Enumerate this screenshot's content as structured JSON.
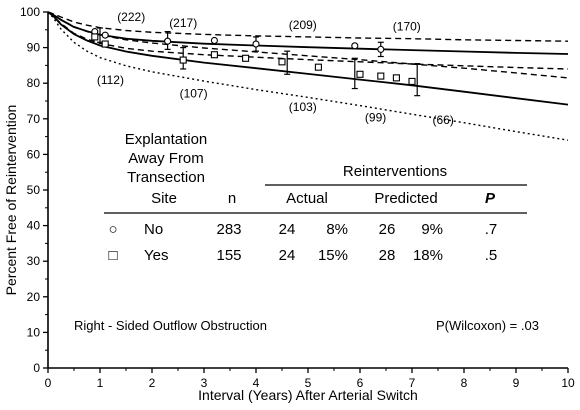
{
  "chart_data": {
    "type": "line",
    "title": "",
    "xlabel": "Interval (Years) After Arterial Switch",
    "ylabel": "Percent Free of Reintervention",
    "xlim": [
      0,
      10
    ],
    "ylim": [
      0,
      100
    ],
    "x_ticks": [
      0,
      1,
      2,
      3,
      4,
      5,
      6,
      7,
      8,
      9,
      10
    ],
    "y_ticks": [
      0,
      10,
      20,
      30,
      40,
      50,
      60,
      70,
      80,
      90,
      100
    ],
    "grid": false,
    "series": [
      {
        "key": "no_parametric",
        "style": "solid",
        "x": [
          0,
          0.1,
          0.25,
          0.5,
          0.75,
          1,
          1.5,
          2,
          3,
          4,
          5,
          6,
          7,
          8,
          9,
          10
        ],
        "y": [
          100,
          99.2,
          97.8,
          95.8,
          94.6,
          93.6,
          92.5,
          91.9,
          91.1,
          90.6,
          90.1,
          89.7,
          89.3,
          88.9,
          88.5,
          88.2
        ]
      },
      {
        "key": "no_ci_upper",
        "style": "dashed",
        "x": [
          0,
          0.1,
          0.25,
          0.5,
          0.75,
          1,
          1.5,
          2,
          3,
          4,
          5,
          6,
          7,
          8,
          9,
          10
        ],
        "y": [
          100,
          99.5,
          98.6,
          97.2,
          96.3,
          95.6,
          94.8,
          94.3,
          93.7,
          93.3,
          93,
          92.7,
          92.5,
          92.2,
          92,
          91.8
        ]
      },
      {
        "key": "no_ci_lower",
        "style": "dashed",
        "x": [
          0,
          0.1,
          0.25,
          0.5,
          0.75,
          1,
          1.5,
          2,
          3,
          4,
          5,
          6,
          7,
          8,
          9,
          10
        ],
        "y": [
          100,
          98.8,
          96.8,
          94,
          92.4,
          91.2,
          89.8,
          89,
          88,
          87.3,
          86.6,
          86,
          85.4,
          84.9,
          84.4,
          84
        ]
      },
      {
        "key": "yes_parametric",
        "style": "solid",
        "x": [
          0,
          0.1,
          0.25,
          0.5,
          0.75,
          1,
          1.5,
          2,
          3,
          4,
          5,
          6,
          7,
          8,
          9,
          10
        ],
        "y": [
          100,
          98.9,
          96.5,
          93.8,
          92,
          90.6,
          88.9,
          87.7,
          85.8,
          84.2,
          82.6,
          81,
          79.4,
          77.6,
          75.8,
          74
        ]
      },
      {
        "key": "yes_ci_upper",
        "style": "dashed",
        "x": [
          0,
          0.1,
          0.25,
          0.5,
          0.75,
          1,
          1.5,
          2,
          3,
          4,
          5,
          6,
          7,
          8,
          9,
          10
        ],
        "y": [
          100,
          99.3,
          97.8,
          95.9,
          94.5,
          93.5,
          92.2,
          91.3,
          89.9,
          88.8,
          87.7,
          86.6,
          85.4,
          84.2,
          82.9,
          81.5
        ]
      },
      {
        "key": "yes_ci_lower",
        "style": "dotted",
        "x": [
          0,
          0.1,
          0.25,
          0.5,
          0.75,
          1,
          1.5,
          2,
          3,
          4,
          5,
          6,
          7,
          8,
          9,
          10
        ],
        "y": [
          100,
          98.4,
          95.2,
          91.5,
          89,
          87.2,
          84.9,
          83.2,
          80.6,
          78.2,
          76,
          73.7,
          71.3,
          68.9,
          66.4,
          64
        ]
      }
    ],
    "points_no": [
      {
        "x": 0.9,
        "y": 94.5
      },
      {
        "x": 1.1,
        "y": 93.5
      },
      {
        "x": 2.3,
        "y": 91.8
      },
      {
        "x": 3.2,
        "y": 92
      },
      {
        "x": 4,
        "y": 91
      },
      {
        "x": 5.9,
        "y": 90.5
      },
      {
        "x": 6.4,
        "y": 89.5
      }
    ],
    "points_yes": [
      {
        "x": 0.9,
        "y": 93
      },
      {
        "x": 1.1,
        "y": 91
      },
      {
        "x": 2.6,
        "y": 86.5
      },
      {
        "x": 3.2,
        "y": 88
      },
      {
        "x": 3.8,
        "y": 87
      },
      {
        "x": 4.5,
        "y": 86
      },
      {
        "x": 5.2,
        "y": 84.5
      },
      {
        "x": 6,
        "y": 82.5
      },
      {
        "x": 6.4,
        "y": 82
      },
      {
        "x": 6.7,
        "y": 81.5
      },
      {
        "x": 7,
        "y": 80.5
      }
    ],
    "error_bars": [
      {
        "x": 1,
        "y": 93.5,
        "lo": 91.5,
        "hi": 95.5
      },
      {
        "x": 2.3,
        "y": 92,
        "lo": 89.5,
        "hi": 94.5
      },
      {
        "x": 2.6,
        "y": 87,
        "lo": 84,
        "hi": 90
      },
      {
        "x": 4,
        "y": 91,
        "lo": 89,
        "hi": 93
      },
      {
        "x": 4.6,
        "y": 86,
        "lo": 82.5,
        "hi": 89
      },
      {
        "x": 5.9,
        "y": 83,
        "lo": 78.5,
        "hi": 87
      },
      {
        "x": 6.4,
        "y": 89.5,
        "lo": 87.5,
        "hi": 91.5
      },
      {
        "x": 7.1,
        "y": 81,
        "lo": 76.5,
        "hi": 85.5
      }
    ],
    "annotations": [
      {
        "text": "(222)",
        "x": 1.6,
        "y": 97.5
      },
      {
        "text": "(217)",
        "x": 2.6,
        "y": 95.8
      },
      {
        "text": "(209)",
        "x": 4.9,
        "y": 95.2
      },
      {
        "text": "(170)",
        "x": 6.9,
        "y": 94.8
      },
      {
        "text": "(112)",
        "x": 1.2,
        "y": 79.8
      },
      {
        "text": "(107)",
        "x": 2.8,
        "y": 76
      },
      {
        "text": "(103)",
        "x": 4.9,
        "y": 72.2
      },
      {
        "text": "(99)",
        "x": 6.3,
        "y": 69.3
      },
      {
        "text": "(66)",
        "x": 7.6,
        "y": 68.5
      }
    ]
  },
  "table": {
    "group_title_lines": [
      "Explantation",
      "Away From",
      "Transection"
    ],
    "reinterventions_label": "Reinterventions",
    "headers": {
      "site": "Site",
      "n": "n",
      "actual": "Actual",
      "predicted": "Predicted",
      "p": "P"
    },
    "rows": [
      {
        "symbol": "○",
        "site": "No",
        "n": "283",
        "actual_n": "24",
        "actual_pct": "8%",
        "pred_n": "26",
        "pred_pct": "9%",
        "p": ".7"
      },
      {
        "symbol": "□",
        "site": "Yes",
        "n": "155",
        "actual_n": "24",
        "actual_pct": "15%",
        "pred_n": "28",
        "pred_pct": "18%",
        "p": ".5"
      }
    ]
  },
  "footer": {
    "left": "Right - Sided Outflow Obstruction",
    "right": "P(Wilcoxon) = .03"
  }
}
